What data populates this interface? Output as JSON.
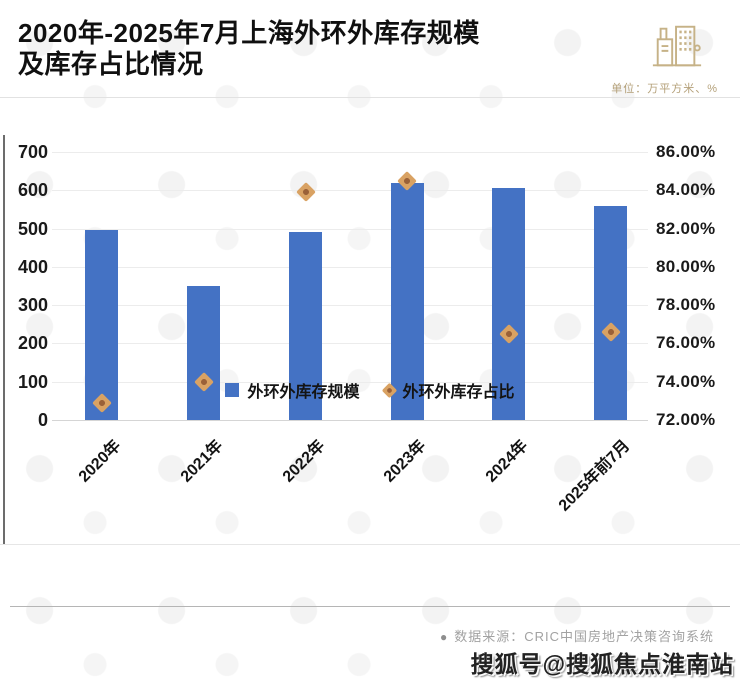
{
  "header": {
    "title_line1": "2020年-2025年7月上海外环外库存规模",
    "title_line2": "及库存占比情况",
    "unit_label": "单位：万平方米、%"
  },
  "chart_data": {
    "type": "bar",
    "title": "2020年-2025年7月上海外环外库存规模及库存占比情况",
    "categories": [
      "2020年",
      "2021年",
      "2022年",
      "2023年",
      "2024年",
      "2025年前7月"
    ],
    "series": [
      {
        "name": "外环外库存规模",
        "type": "bar",
        "axis": "left",
        "values": [
          497,
          350,
          490,
          620,
          605,
          560
        ]
      },
      {
        "name": "外环外库存占比",
        "type": "scatter",
        "axis": "right",
        "values": [
          72.9,
          74.0,
          83.9,
          84.5,
          76.5,
          76.6
        ]
      }
    ],
    "left_axis": {
      "min": 0,
      "max": 700,
      "step": 100,
      "ticks": [
        "700",
        "600",
        "500",
        "400",
        "300",
        "200",
        "100",
        "0"
      ]
    },
    "right_axis": {
      "min": 72,
      "max": 86,
      "step": 2,
      "ticks": [
        "86.00%",
        "84.00%",
        "82.00%",
        "80.00%",
        "78.00%",
        "76.00%",
        "74.00%",
        "72.00%"
      ]
    },
    "grid": true,
    "legend_position": "bottom"
  },
  "legend": [
    {
      "label": "外环外库存规模",
      "marker": "square"
    },
    {
      "label": "外环外库存占比",
      "marker": "diamond"
    }
  ],
  "footer": {
    "source_bullet": "●",
    "source_text": "数据来源：CRIC中国房地产决策咨询系统",
    "watermark_text": "搜狐号@搜狐焦点淮南站"
  },
  "colors": {
    "bar": "#4472c4",
    "marker": "#d9a263",
    "marker_core": "#9a6138",
    "accent_tan": "#bfa87c"
  }
}
